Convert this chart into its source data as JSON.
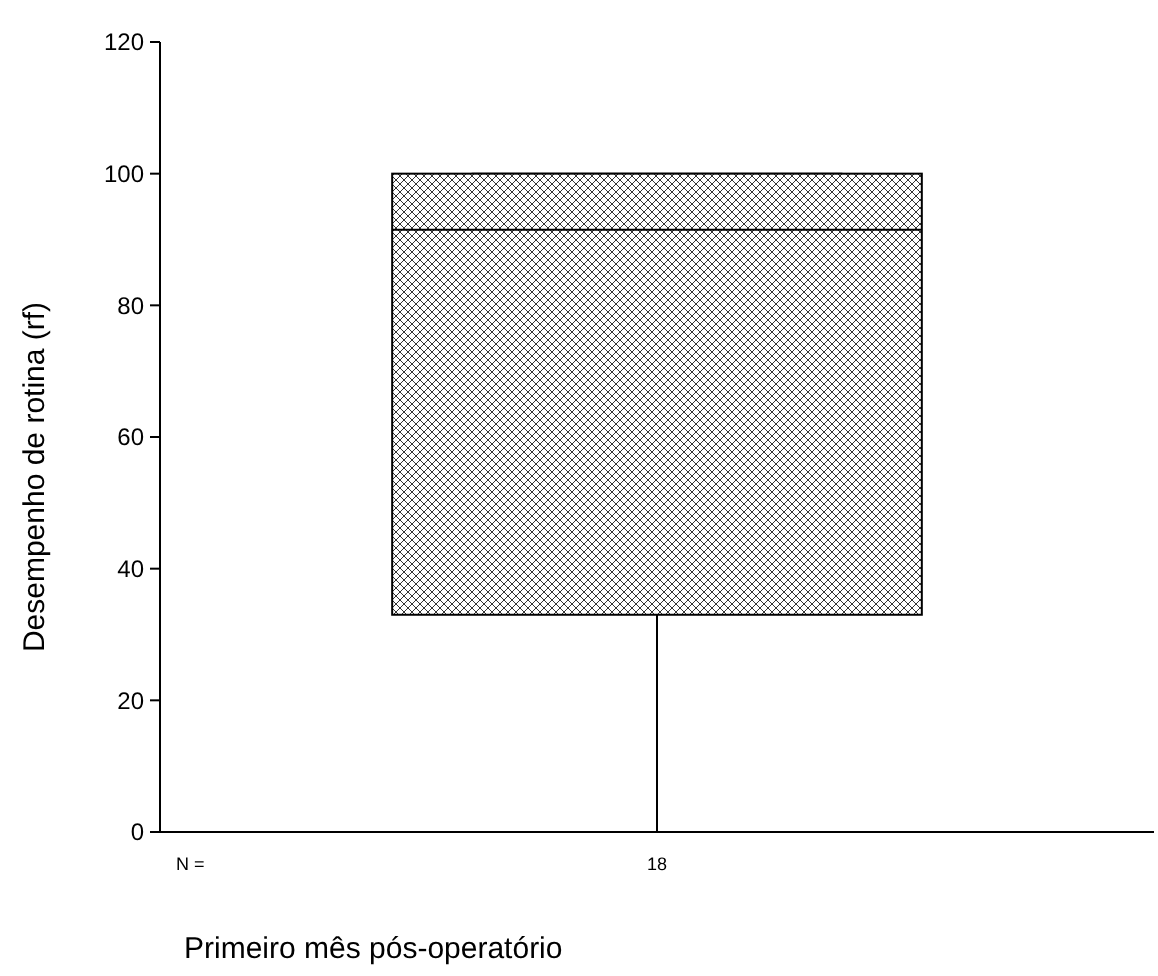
{
  "chart_data": {
    "type": "box",
    "categories": [
      "18"
    ],
    "xlabel": "Primeiro mês pós-operatório",
    "ylabel": "Desempenho de rotina (rf)",
    "ylim": [
      0,
      120
    ],
    "yticks": [
      0,
      20,
      40,
      60,
      80,
      100,
      120
    ],
    "boxes": [
      {
        "low": 0,
        "q1": 33,
        "median": 91.5,
        "q3": 100,
        "high": 100
      }
    ],
    "color": "#000000",
    "annotations": [
      "N ="
    ]
  }
}
